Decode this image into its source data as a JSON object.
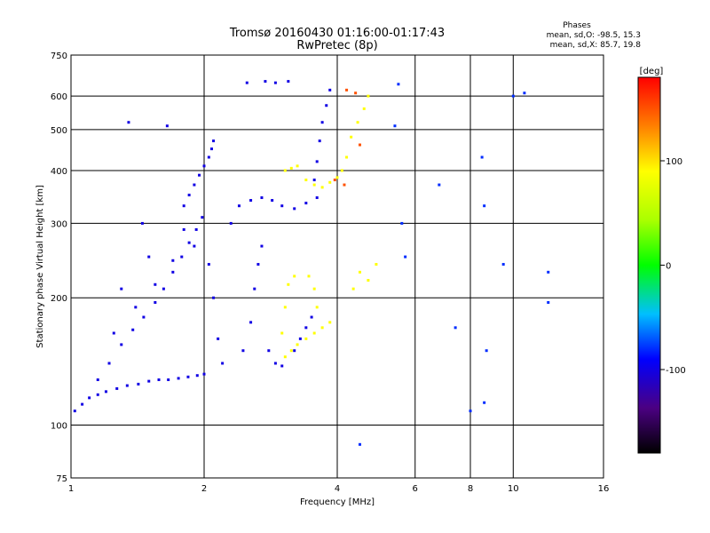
{
  "chart_data": {
    "type": "scatter",
    "title": "Tromsø 20160430 01:16:00-01:17:43",
    "subtitle": "RwPretec (8p)",
    "xlabel": "Frequency [MHz]",
    "ylabel": "Stationary phase Virtual Height [km]",
    "x_scale": "log",
    "y_scale": "log",
    "xlim": [
      1,
      16
    ],
    "ylim": [
      75,
      750
    ],
    "x_ticks": [
      1,
      2,
      4,
      6,
      8,
      10,
      16
    ],
    "x_tick_labels": [
      "1",
      "2",
      "4",
      "6",
      "8",
      "10",
      "16"
    ],
    "y_ticks": [
      75,
      100,
      200,
      300,
      400,
      500,
      600,
      750
    ],
    "y_tick_labels": [
      "75",
      "100",
      "200",
      "300",
      "400",
      "500",
      "600",
      "750"
    ],
    "grid": true,
    "stats_header": "Phases",
    "stats_lines": [
      "mean, sd,O: -98.5, 15.3",
      "mean, sd,X: 85.7, 19.8"
    ],
    "colorbar": {
      "label": "[deg]",
      "range": [
        -180,
        180
      ],
      "ticks": [
        100,
        0,
        -100
      ],
      "tick_labels": [
        "100",
        "0",
        "-100"
      ]
    },
    "series": [
      {
        "mode": "O",
        "color_value": -100,
        "points": [
          [
            1.02,
            108
          ],
          [
            1.06,
            112
          ],
          [
            1.1,
            116
          ],
          [
            1.15,
            118
          ],
          [
            1.2,
            120
          ],
          [
            1.27,
            122
          ],
          [
            1.34,
            124
          ],
          [
            1.42,
            125
          ],
          [
            1.5,
            127
          ],
          [
            1.58,
            128
          ],
          [
            1.66,
            128
          ],
          [
            1.75,
            129
          ],
          [
            1.84,
            130
          ],
          [
            1.93,
            131
          ],
          [
            2.0,
            132
          ],
          [
            1.15,
            128
          ],
          [
            1.22,
            140
          ],
          [
            1.3,
            155
          ],
          [
            1.38,
            168
          ],
          [
            1.46,
            180
          ],
          [
            1.55,
            195
          ],
          [
            1.62,
            210
          ],
          [
            1.7,
            230
          ],
          [
            1.78,
            250
          ],
          [
            1.85,
            270
          ],
          [
            1.92,
            290
          ],
          [
            1.98,
            310
          ],
          [
            1.8,
            330
          ],
          [
            1.85,
            350
          ],
          [
            1.9,
            370
          ],
          [
            1.95,
            390
          ],
          [
            2.0,
            410
          ],
          [
            2.05,
            430
          ],
          [
            2.08,
            450
          ],
          [
            2.1,
            470
          ],
          [
            1.25,
            165
          ],
          [
            1.4,
            190
          ],
          [
            1.55,
            215
          ],
          [
            1.7,
            245
          ],
          [
            1.9,
            265
          ],
          [
            2.05,
            240
          ],
          [
            2.1,
            200
          ],
          [
            2.15,
            160
          ],
          [
            2.2,
            140
          ],
          [
            2.3,
            300
          ],
          [
            2.4,
            330
          ],
          [
            2.55,
            340
          ],
          [
            2.7,
            345
          ],
          [
            2.85,
            340
          ],
          [
            3.0,
            330
          ],
          [
            3.2,
            325
          ],
          [
            3.4,
            335
          ],
          [
            3.6,
            345
          ],
          [
            3.55,
            380
          ],
          [
            3.6,
            420
          ],
          [
            3.65,
            470
          ],
          [
            3.7,
            520
          ],
          [
            3.78,
            570
          ],
          [
            3.85,
            620
          ],
          [
            2.5,
            645
          ],
          [
            2.75,
            650
          ],
          [
            2.9,
            645
          ],
          [
            3.1,
            650
          ],
          [
            2.45,
            150
          ],
          [
            2.55,
            175
          ],
          [
            2.6,
            210
          ],
          [
            2.65,
            240
          ],
          [
            2.7,
            265
          ],
          [
            2.8,
            150
          ],
          [
            2.9,
            140
          ],
          [
            3.0,
            138
          ],
          [
            3.2,
            150
          ],
          [
            3.3,
            160
          ],
          [
            3.4,
            170
          ],
          [
            3.5,
            180
          ],
          [
            1.35,
            520
          ],
          [
            1.45,
            300
          ],
          [
            1.65,
            510
          ],
          [
            1.8,
            290
          ],
          [
            1.3,
            210
          ],
          [
            1.5,
            250
          ]
        ]
      },
      {
        "mode": "X",
        "color_value": 90,
        "points": [
          [
            3.05,
            145
          ],
          [
            3.15,
            150
          ],
          [
            3.25,
            155
          ],
          [
            3.4,
            160
          ],
          [
            3.55,
            165
          ],
          [
            3.7,
            170
          ],
          [
            3.85,
            175
          ],
          [
            3.0,
            165
          ],
          [
            3.05,
            190
          ],
          [
            3.1,
            215
          ],
          [
            3.2,
            225
          ],
          [
            3.45,
            225
          ],
          [
            3.55,
            210
          ],
          [
            3.6,
            190
          ],
          [
            3.05,
            400
          ],
          [
            3.15,
            405
          ],
          [
            3.25,
            410
          ],
          [
            3.4,
            380
          ],
          [
            3.55,
            370
          ],
          [
            3.7,
            365
          ],
          [
            3.85,
            375
          ],
          [
            4.0,
            385
          ],
          [
            4.1,
            400
          ],
          [
            4.2,
            430
          ],
          [
            4.3,
            480
          ],
          [
            4.45,
            520
          ],
          [
            4.6,
            560
          ],
          [
            4.7,
            600
          ],
          [
            4.35,
            210
          ],
          [
            4.5,
            230
          ],
          [
            4.7,
            220
          ],
          [
            4.9,
            240
          ]
        ]
      },
      {
        "mode": "X",
        "color_value": 150,
        "points": [
          [
            4.2,
            620
          ],
          [
            4.4,
            610
          ],
          [
            3.95,
            380
          ],
          [
            4.15,
            370
          ],
          [
            4.5,
            460
          ]
        ]
      },
      {
        "mode": "sparse",
        "color_value": -80,
        "points": [
          [
            5.5,
            640
          ],
          [
            5.4,
            510
          ],
          [
            6.8,
            370
          ],
          [
            8.5,
            430
          ],
          [
            8.6,
            330
          ],
          [
            9.5,
            240
          ],
          [
            10.0,
            600
          ],
          [
            10.6,
            610
          ],
          [
            7.4,
            170
          ],
          [
            8.0,
            108
          ],
          [
            8.7,
            150
          ],
          [
            8.6,
            113
          ],
          [
            12.0,
            230
          ],
          [
            12.0,
            195
          ],
          [
            4.5,
            90
          ],
          [
            5.7,
            250
          ],
          [
            5.6,
            300
          ]
        ]
      }
    ]
  }
}
